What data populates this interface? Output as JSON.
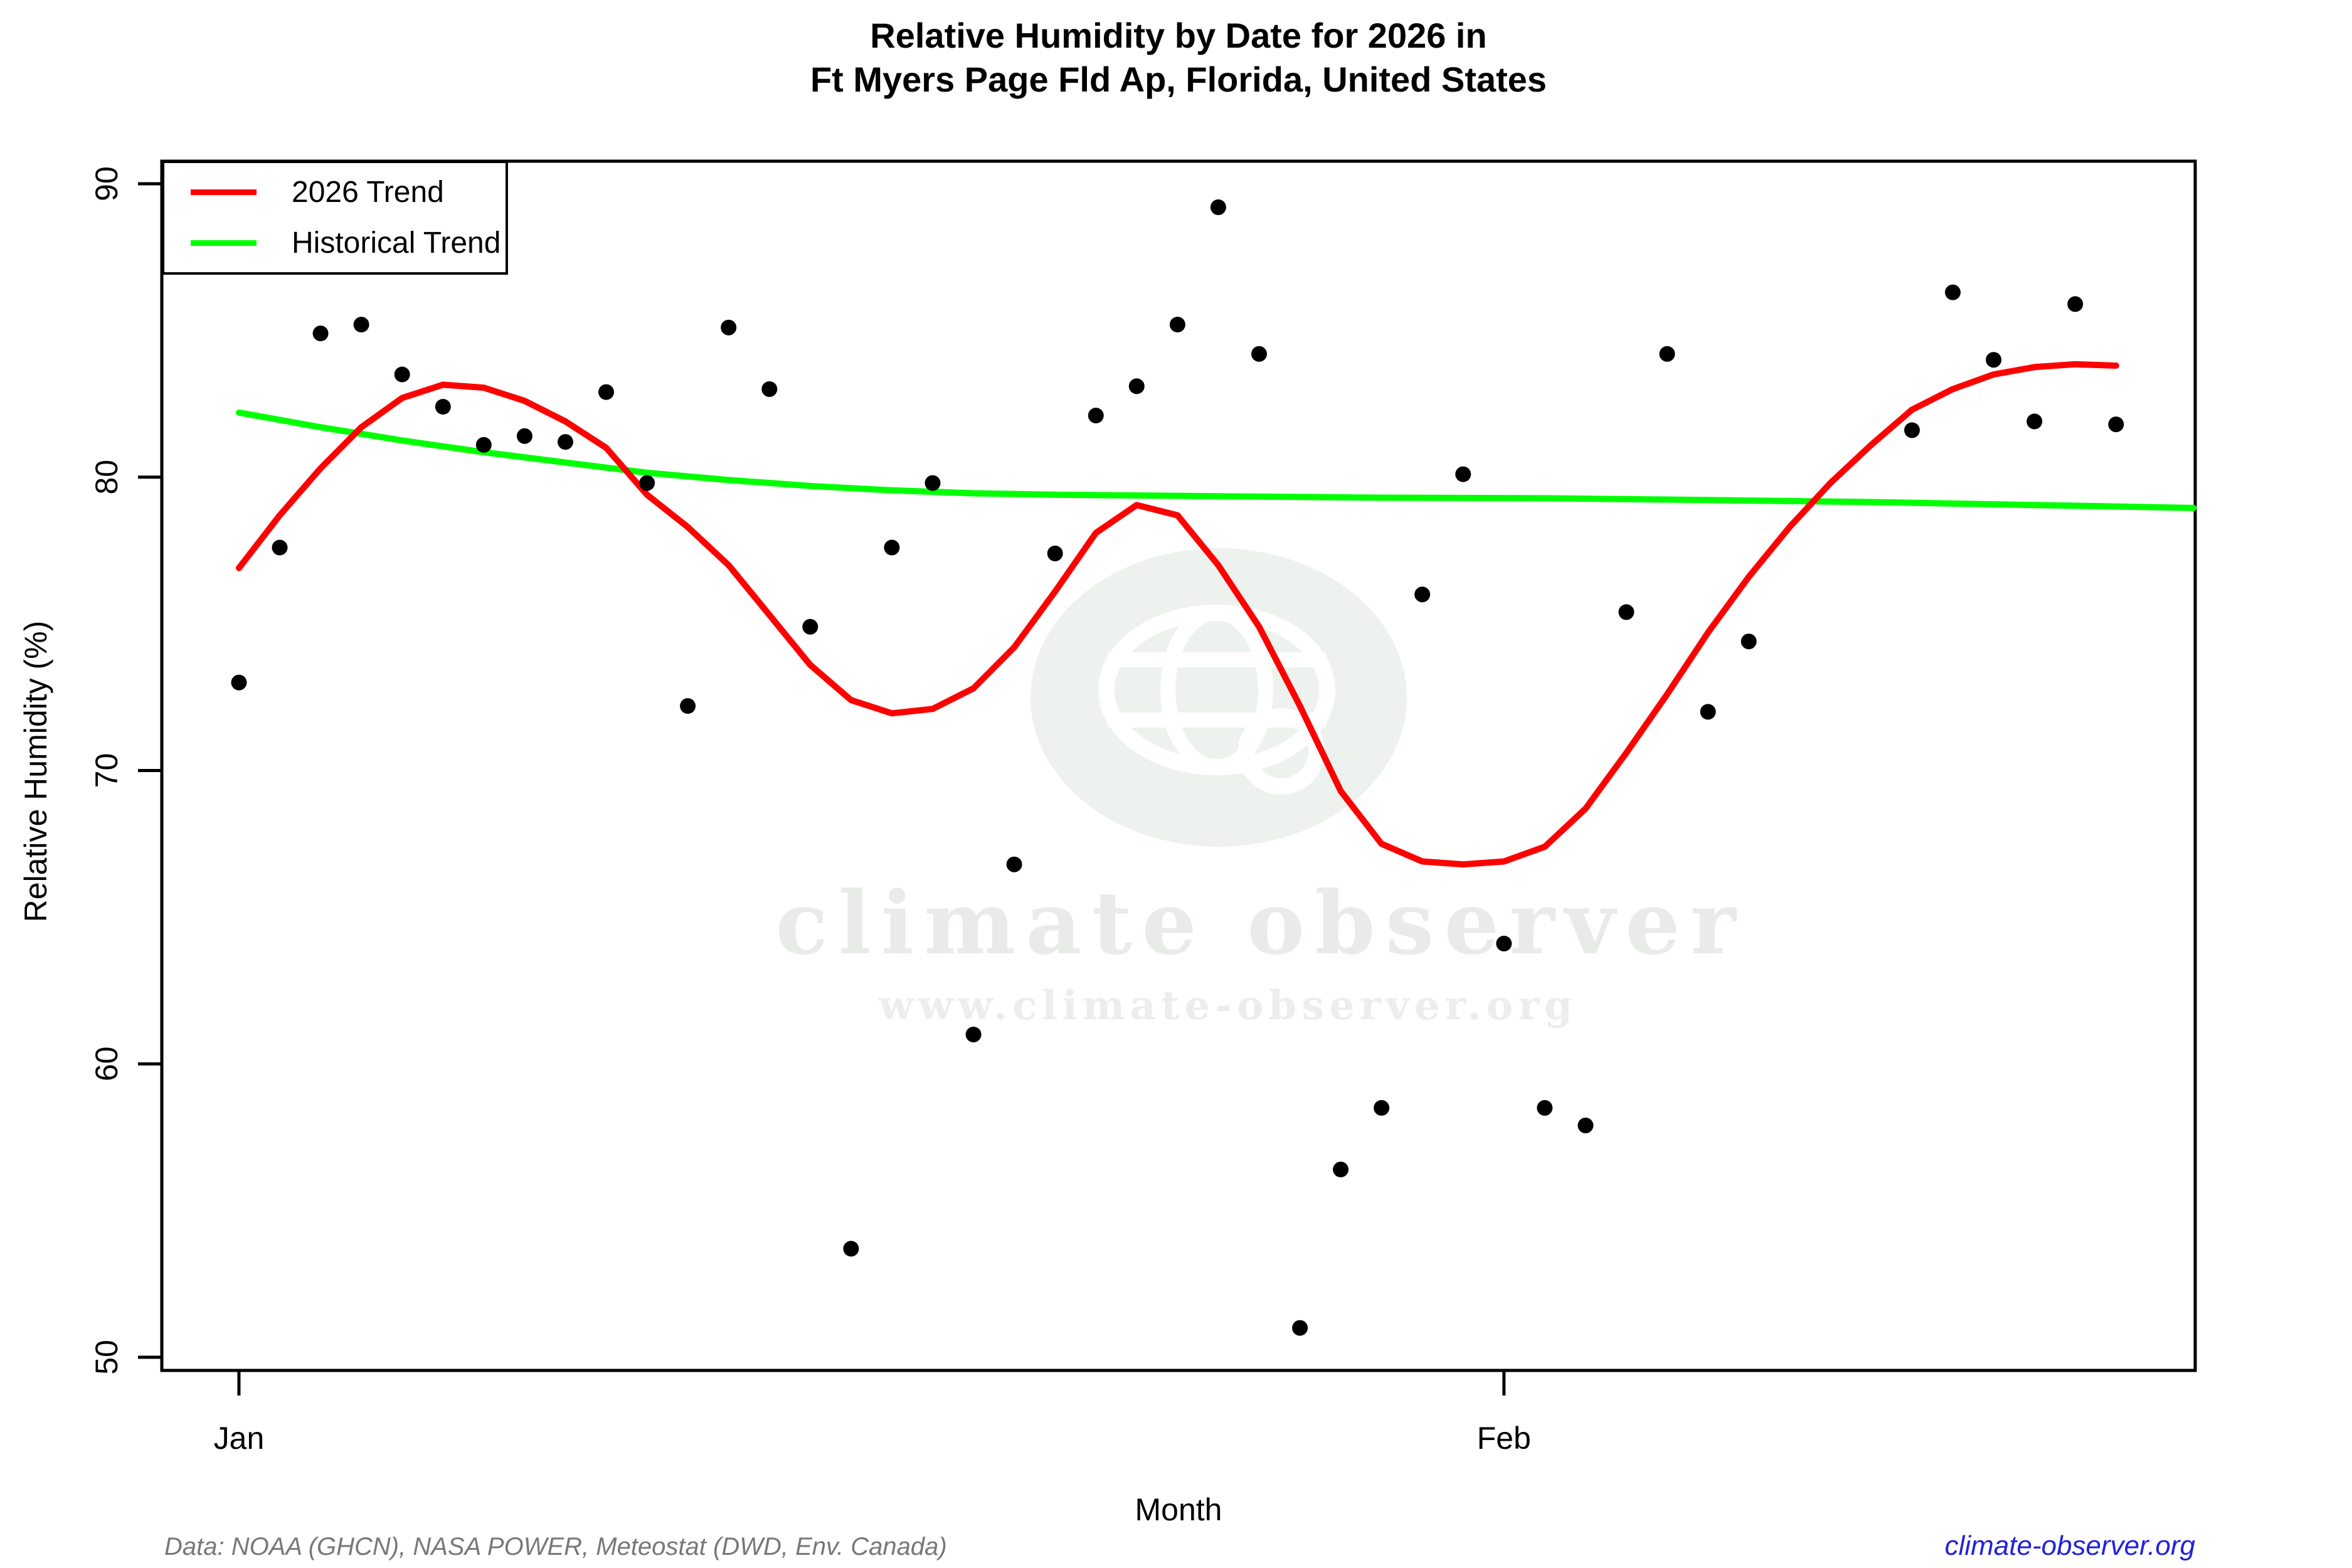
{
  "title": {
    "line1": "Relative Humidity by Date for 2026 in",
    "line2": "Ft Myers Page Fld Ap, Florida, United States"
  },
  "legend": {
    "items": [
      {
        "label": "2026 Trend",
        "color": "#ff0000"
      },
      {
        "label": "Historical Trend",
        "color": "#00ff00"
      }
    ]
  },
  "watermark": {
    "brand": "climate observer",
    "url": "www.climate-observer.org",
    "icon": "globe-icon"
  },
  "footer": {
    "source": "Data: NOAA (GHCN), NASA POWER, Meteostat (DWD, Env. Canada)",
    "link": "climate-observer.org"
  },
  "colors": {
    "trend_2026": "#ff0000",
    "trend_historical": "#00ff00",
    "points": "#000000",
    "axis": "#000000",
    "watermark_blob": "#eef2ee",
    "watermark_text": "#e9ebe9",
    "watermark_url": "#ededed",
    "footer_source": "#787878",
    "footer_link": "#2222dd"
  },
  "chart_data": {
    "type": "scatter",
    "title": "Relative Humidity by Date for 2026 in Ft Myers Page Fld Ap, Florida, United States",
    "xlabel": "Month",
    "ylabel": "Relative Humidity (%)",
    "grid": false,
    "legend_position": "top-left",
    "x_axis": {
      "unit": "day offset from Jan 1",
      "tick_labels": [
        "Jan",
        "Feb"
      ],
      "tick_days": [
        0,
        31
      ],
      "range_days": [
        -1.89,
        47.94
      ]
    },
    "y_axis": {
      "ticks": [
        50,
        60,
        70,
        80,
        90
      ],
      "range": [
        49.55,
        90.77
      ]
    },
    "points": [
      {
        "date": "Jan 1",
        "day": 0,
        "value": 73.0
      },
      {
        "date": "Jan 2",
        "day": 1,
        "value": 77.6
      },
      {
        "date": "Jan 3",
        "day": 2,
        "value": 84.9
      },
      {
        "date": "Jan 4",
        "day": 3,
        "value": 85.2
      },
      {
        "date": "Jan 5",
        "day": 4,
        "value": 83.5
      },
      {
        "date": "Jan 6",
        "day": 5,
        "value": 82.4
      },
      {
        "date": "Jan 7",
        "day": 6,
        "value": 81.1
      },
      {
        "date": "Jan 8",
        "day": 7,
        "value": 81.4
      },
      {
        "date": "Jan 9",
        "day": 8,
        "value": 81.2
      },
      {
        "date": "Jan 10",
        "day": 9,
        "value": 82.9
      },
      {
        "date": "Jan 11",
        "day": 10,
        "value": 79.8
      },
      {
        "date": "Jan 12",
        "day": 11,
        "value": 72.2
      },
      {
        "date": "Jan 13",
        "day": 12,
        "value": 85.1
      },
      {
        "date": "Jan 14",
        "day": 13,
        "value": 83.0
      },
      {
        "date": "Jan 15",
        "day": 14,
        "value": 74.9
      },
      {
        "date": "Jan 16",
        "day": 15,
        "value": 53.7
      },
      {
        "date": "Jan 17",
        "day": 16,
        "value": 77.6
      },
      {
        "date": "Jan 18",
        "day": 17,
        "value": 79.8
      },
      {
        "date": "Jan 19",
        "day": 18,
        "value": 61.0
      },
      {
        "date": "Jan 20",
        "day": 19,
        "value": 66.8
      },
      {
        "date": "Jan 21",
        "day": 20,
        "value": 77.4
      },
      {
        "date": "Jan 22",
        "day": 21,
        "value": 82.1
      },
      {
        "date": "Jan 23",
        "day": 22,
        "value": 83.1
      },
      {
        "date": "Jan 24",
        "day": 23,
        "value": 85.2
      },
      {
        "date": "Jan 25",
        "day": 24,
        "value": 89.2
      },
      {
        "date": "Jan 26",
        "day": 25,
        "value": 84.2
      },
      {
        "date": "Jan 27",
        "day": 26,
        "value": 51.0
      },
      {
        "date": "Jan 28",
        "day": 27,
        "value": 56.4
      },
      {
        "date": "Jan 29",
        "day": 28,
        "value": 58.5
      },
      {
        "date": "Jan 30",
        "day": 29,
        "value": 76.0
      },
      {
        "date": "Jan 31",
        "day": 30,
        "value": 80.1
      },
      {
        "date": "Feb 1",
        "day": 31,
        "value": 64.1
      },
      {
        "date": "Feb 2",
        "day": 32,
        "value": 58.5
      },
      {
        "date": "Feb 3",
        "day": 33,
        "value": 57.9
      },
      {
        "date": "Feb 4",
        "day": 34,
        "value": 75.4
      },
      {
        "date": "Feb 5",
        "day": 35,
        "value": 84.2
      },
      {
        "date": "Feb 6",
        "day": 36,
        "value": 72.0
      },
      {
        "date": "Feb 7",
        "day": 37,
        "value": 74.4
      },
      {
        "date": "Feb 11",
        "day": 41,
        "value": 81.6
      },
      {
        "date": "Feb 12",
        "day": 42,
        "value": 86.3
      },
      {
        "date": "Feb 13",
        "day": 43,
        "value": 84.0
      },
      {
        "date": "Feb 14",
        "day": 44,
        "value": 81.9
      },
      {
        "date": "Feb 15",
        "day": 45,
        "value": 85.9
      },
      {
        "date": "Feb 16",
        "day": 46,
        "value": 81.8
      }
    ],
    "series": [
      {
        "name": "2026 Trend",
        "type": "line",
        "color_key": "trend_2026",
        "points": [
          [
            0,
            76.9
          ],
          [
            1,
            78.7
          ],
          [
            2,
            80.3
          ],
          [
            3,
            81.7
          ],
          [
            4,
            82.7
          ],
          [
            5,
            83.15
          ],
          [
            6,
            83.05
          ],
          [
            7,
            82.6
          ],
          [
            8,
            81.9
          ],
          [
            9,
            81.0
          ],
          [
            10,
            79.4
          ],
          [
            11,
            78.3
          ],
          [
            12,
            77.0
          ],
          [
            13,
            75.3
          ],
          [
            14,
            73.6
          ],
          [
            15,
            72.4
          ],
          [
            16,
            71.95
          ],
          [
            17,
            72.1
          ],
          [
            18,
            72.8
          ],
          [
            19,
            74.2
          ],
          [
            20,
            76.1
          ],
          [
            21,
            78.1
          ],
          [
            22,
            79.05
          ],
          [
            23,
            78.7
          ],
          [
            24,
            77.0
          ],
          [
            25,
            74.9
          ],
          [
            26,
            72.2
          ],
          [
            27,
            69.3
          ],
          [
            28,
            67.5
          ],
          [
            29,
            66.9
          ],
          [
            30,
            66.8
          ],
          [
            31,
            66.9
          ],
          [
            32,
            67.4
          ],
          [
            33,
            68.7
          ],
          [
            34,
            70.6
          ],
          [
            35,
            72.6
          ],
          [
            36,
            74.7
          ],
          [
            37,
            76.6
          ],
          [
            38,
            78.3
          ],
          [
            39,
            79.8
          ],
          [
            40,
            81.1
          ],
          [
            41,
            82.3
          ],
          [
            42,
            83.0
          ],
          [
            43,
            83.5
          ],
          [
            44,
            83.75
          ],
          [
            45,
            83.85
          ],
          [
            46,
            83.8
          ]
        ]
      },
      {
        "name": "Historical Trend",
        "type": "line",
        "color_key": "trend_historical",
        "points": [
          [
            0,
            82.2
          ],
          [
            2,
            81.7
          ],
          [
            4,
            81.25
          ],
          [
            6,
            80.85
          ],
          [
            8,
            80.5
          ],
          [
            10,
            80.15
          ],
          [
            12,
            79.9
          ],
          [
            14,
            79.7
          ],
          [
            16,
            79.55
          ],
          [
            18,
            79.45
          ],
          [
            20,
            79.4
          ],
          [
            24,
            79.35
          ],
          [
            28,
            79.3
          ],
          [
            32,
            79.28
          ],
          [
            36,
            79.22
          ],
          [
            40,
            79.15
          ],
          [
            44,
            79.05
          ],
          [
            47.9,
            78.95
          ]
        ]
      }
    ]
  }
}
